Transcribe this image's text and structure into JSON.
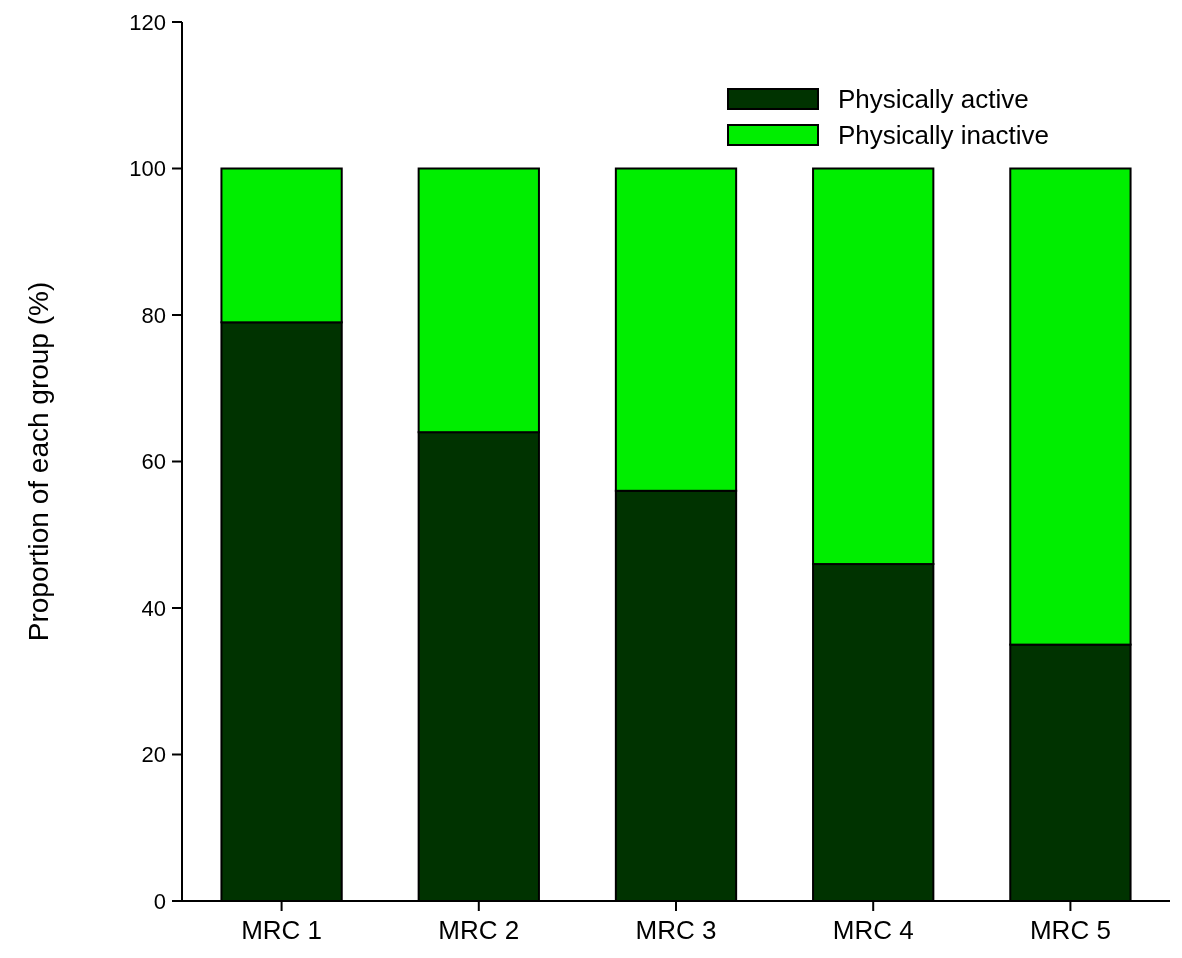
{
  "chart_data": {
    "type": "bar",
    "stacked": true,
    "ylabel": "Proportion of each group (%)",
    "categories": [
      "MRC 1",
      "MRC 2",
      "MRC 3",
      "MRC 4",
      "MRC 5"
    ],
    "series": [
      {
        "name": "Physically active",
        "color": "#003300",
        "values": [
          79,
          64,
          56,
          46,
          35
        ]
      },
      {
        "name": "Physically inactive",
        "color": "#00ee00",
        "values": [
          21,
          36,
          44,
          54,
          65
        ]
      }
    ],
    "ylim": [
      0,
      120
    ],
    "yticks": [
      0,
      20,
      40,
      60,
      80,
      100,
      120
    ],
    "legend": "top right",
    "grid": false
  }
}
